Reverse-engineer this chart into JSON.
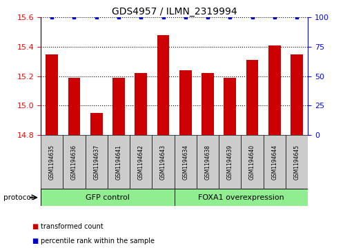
{
  "title": "GDS4957 / ILMN_2319994",
  "samples": [
    "GSM1194635",
    "GSM1194636",
    "GSM1194637",
    "GSM1194641",
    "GSM1194642",
    "GSM1194643",
    "GSM1194634",
    "GSM1194638",
    "GSM1194639",
    "GSM1194640",
    "GSM1194644",
    "GSM1194645"
  ],
  "transformed_counts": [
    15.35,
    15.19,
    14.95,
    15.19,
    15.22,
    15.48,
    15.24,
    15.22,
    15.19,
    15.31,
    15.41,
    15.35
  ],
  "percentile_ranks": [
    100,
    100,
    100,
    100,
    100,
    100,
    100,
    100,
    100,
    100,
    100,
    100
  ],
  "group1_label": "GFP control",
  "group2_label": "FOXA1 overexpression",
  "group1_count": 6,
  "group2_count": 6,
  "ylim_left": [
    14.8,
    15.6
  ],
  "ylim_right": [
    0,
    100
  ],
  "yticks_left": [
    14.8,
    15.0,
    15.2,
    15.4,
    15.6
  ],
  "yticks_right": [
    0,
    25,
    50,
    75,
    100
  ],
  "bar_color": "#cc0000",
  "dot_color": "#0000cc",
  "group1_color": "#90ee90",
  "group2_color": "#90ee90",
  "sample_bg_color": "#cccccc",
  "protocol_label": "protocol",
  "legend_bar": "transformed count",
  "legend_dot": "percentile rank within the sample",
  "fig_width": 5.13,
  "fig_height": 3.63,
  "dpi": 100
}
